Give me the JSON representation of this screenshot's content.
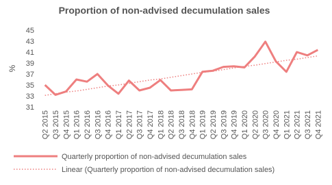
{
  "chart_data": {
    "type": "line",
    "title": "Proportion of non-advised decumulation sales",
    "y_label": "%",
    "categories": [
      "Q2 2015",
      "Q3 2015",
      "Q4 2015",
      "Q1 2016",
      "Q2 2016",
      "Q3 2016",
      "Q4 2016",
      "Q1 2017",
      "Q2 2017",
      "Q3 2017",
      "Q4 2017",
      "Q1 2018",
      "Q2 2018",
      "Q3 2018",
      "Q4 2018",
      "Q1 2019",
      "Q2 2019",
      "Q3 2019",
      "Q4 2019",
      "Q1 2020",
      "Q2 2020",
      "Q3 2020",
      "Q4 2020",
      "Q1 2021",
      "Q2 2021",
      "Q3 2021",
      "Q4 2021"
    ],
    "series": [
      {
        "name": "Quarterly proportion of non-advised decumulation sales",
        "color": "#ee7f7f",
        "style": "solid",
        "values": [
          35,
          33.2,
          33.8,
          36,
          35.6,
          37,
          34.9,
          33.4,
          35.8,
          34,
          34.5,
          35.9,
          34,
          34.1,
          34.2,
          37.4,
          37.6,
          38.3,
          38.4,
          38.2,
          40.2,
          42.9,
          39.3,
          37.4,
          41,
          40.4,
          41.4
        ]
      },
      {
        "name": "Linear (Quarterly proportion of non-advised decumulation sales)",
        "color": "#ee7f7f",
        "style": "dotted",
        "values": [
          33.1,
          33.4,
          33.7,
          33.9,
          34.2,
          34.5,
          34.8,
          35,
          35.3,
          35.6,
          35.9,
          36.1,
          36.4,
          36.7,
          37,
          37.3,
          37.5,
          37.8,
          38.1,
          38.4,
          38.6,
          38.9,
          39.2,
          39.5,
          39.7,
          40,
          40.3
        ]
      }
    ],
    "ylim": [
      31,
      45
    ],
    "yticks": [
      31,
      33,
      35,
      37,
      39,
      41,
      43,
      45
    ],
    "grid": false
  }
}
